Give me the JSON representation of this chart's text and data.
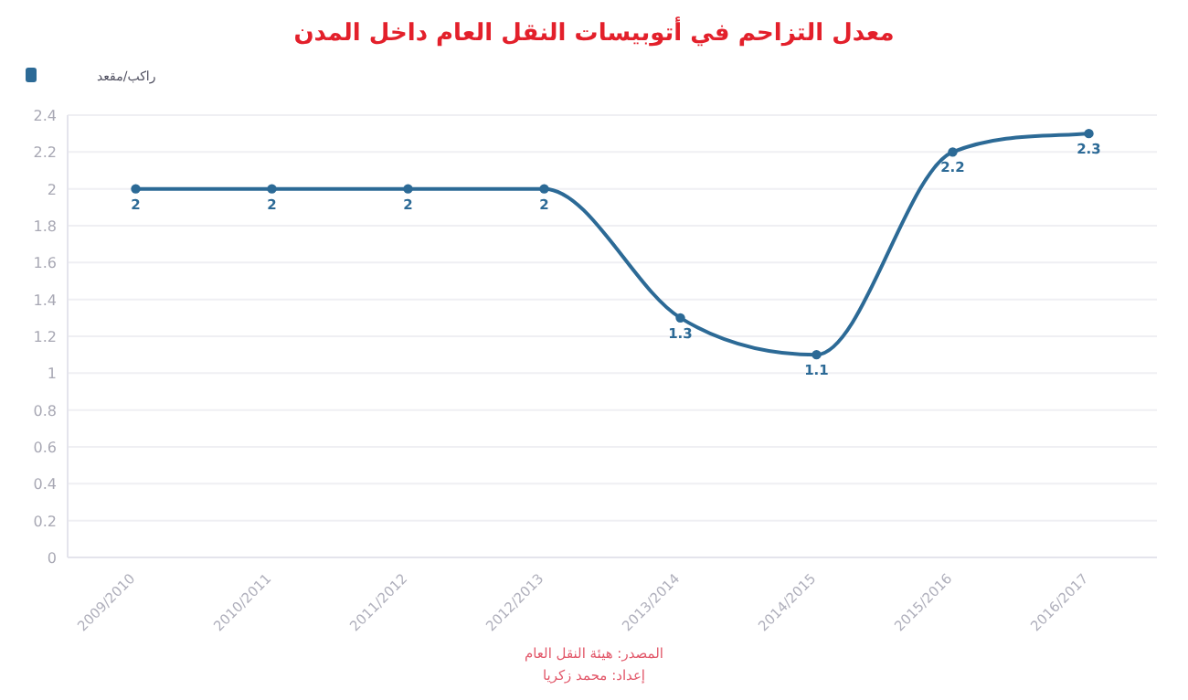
{
  "chart_data": {
    "type": "line",
    "title": "معدل التزاحم في أتوبيسات النقل العام داخل المدن",
    "categories": [
      "2009/2010",
      "2010/2011",
      "2011/2012",
      "2012/2013",
      "2013/2014",
      "2014/2015",
      "2015/2016",
      "2016/2017"
    ],
    "series": [
      {
        "name": "راكب/مقعد",
        "color": "#2c6a96",
        "values": [
          2,
          2,
          2,
          2,
          1.3,
          1.1,
          2.2,
          2.3
        ]
      }
    ],
    "ylim": [
      0,
      2.4
    ],
    "yticks": [
      0,
      0.2,
      0.4,
      0.6,
      0.8,
      1,
      1.2,
      1.4,
      1.6,
      1.8,
      2,
      2.2,
      2.4
    ],
    "grid": "y",
    "legend": "top left",
    "marker": "circle",
    "data_labels": true,
    "annotations": [
      "المصدر: هيئة النقل العام",
      "إعداد: محمد زكريا"
    ]
  }
}
